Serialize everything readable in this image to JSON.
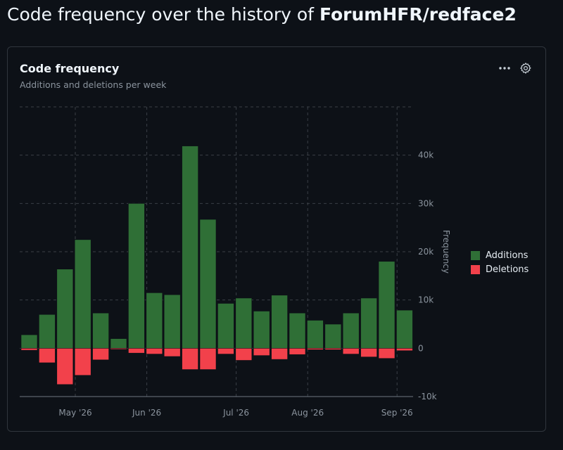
{
  "page": {
    "title_prefix": "Code frequency over the history of ",
    "repo": "ForumHFR/redface2"
  },
  "card": {
    "title": "Code frequency",
    "subtitle": "Additions and deletions per week",
    "more_icon": "kebab-horizontal-icon",
    "settings_icon": "gear-icon"
  },
  "colors": {
    "additions": "#2f6f36",
    "deletions": "#f2414b",
    "grid": "#3a3f46",
    "axis_text": "#8b949e"
  },
  "chart_data": {
    "type": "bar",
    "weeks": [
      "2026-04-12",
      "2026-04-19",
      "2026-04-26",
      "2026-05-03",
      "2026-05-10",
      "2026-05-17",
      "2026-05-24",
      "2026-05-31",
      "2026-06-07",
      "2026-06-14",
      "2026-06-21",
      "2026-06-28",
      "2026-07-05",
      "2026-07-12",
      "2026-07-19",
      "2026-07-26",
      "2026-08-02",
      "2026-08-09",
      "2026-08-16",
      "2026-08-23",
      "2026-08-30",
      "2026-09-06",
      "2026-09-13"
    ],
    "series": [
      {
        "name": "Additions",
        "values": [
          2800,
          7000,
          16400,
          22500,
          7300,
          2000,
          30000,
          11500,
          11100,
          41900,
          26700,
          9300,
          10400,
          7700,
          11000,
          7300,
          5800,
          5000,
          7300,
          10400,
          18000,
          7900,
          0
        ]
      },
      {
        "name": "Deletions",
        "values": [
          -400,
          -3000,
          -7500,
          -5600,
          -2400,
          -200,
          -1000,
          -1200,
          -1700,
          -4400,
          -4400,
          -1200,
          -2500,
          -1500,
          -2300,
          -1300,
          -300,
          -300,
          -1200,
          -1800,
          -2100,
          -500,
          0
        ]
      }
    ],
    "x_ticks": [
      "May '26",
      "Jun '26",
      "Jul '26",
      "Aug '26",
      "Sep '26"
    ],
    "x_tick_weeks": [
      "2026-05-03",
      "2026-05-31",
      "2026-07-05",
      "2026-08-02",
      "2026-09-06"
    ],
    "y_ticks": [
      "40k",
      "30k",
      "20k",
      "10k",
      "0",
      "-10k"
    ],
    "y_tick_values": [
      40000,
      30000,
      20000,
      10000,
      0,
      -10000
    ],
    "ylim": [
      -10000,
      50000
    ],
    "ylabel": "Frequency",
    "y_axis_side": "right",
    "grid": true,
    "legend_position": "right"
  }
}
